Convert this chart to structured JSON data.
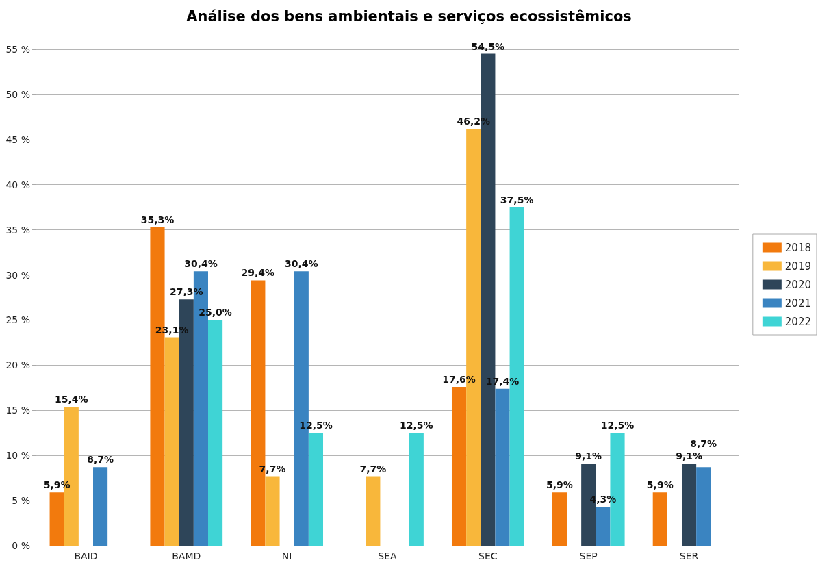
{
  "chart_data": {
    "type": "bar",
    "title": "Análise dos bens ambientais e serviços ecossistêmicos",
    "categories": [
      "BAID",
      "BAMD",
      "NI",
      "SEA",
      "SEC",
      "SEP",
      "SER"
    ],
    "series": [
      {
        "name": "2018",
        "color": "#f27a0d",
        "values": [
          5.9,
          35.3,
          29.4,
          null,
          17.6,
          5.9,
          5.9
        ],
        "value_labels": [
          "5,9%",
          "35,3%",
          "29,4%",
          null,
          "17,6%",
          "5,9%",
          "5,9%"
        ]
      },
      {
        "name": "2019",
        "color": "#f8b73b",
        "values": [
          15.4,
          23.1,
          7.7,
          7.7,
          46.2,
          null,
          null
        ],
        "value_labels": [
          "15,4%",
          "23,1%",
          "7,7%",
          "7,7%",
          "46,2%",
          null,
          null
        ]
      },
      {
        "name": "2020",
        "color": "#2e4559",
        "values": [
          null,
          27.3,
          null,
          null,
          54.5,
          9.1,
          9.1
        ],
        "value_labels": [
          null,
          "27,3%",
          null,
          null,
          "54,5%",
          "9,1%",
          "9,1%"
        ]
      },
      {
        "name": "2021",
        "color": "#3a84c1",
        "values": [
          8.7,
          30.4,
          30.4,
          null,
          17.4,
          4.3,
          8.7
        ],
        "value_labels": [
          "8,7%",
          "30,4%",
          "30,4%",
          null,
          "17,4%",
          "4,3%",
          "8,7%"
        ]
      },
      {
        "name": "2022",
        "color": "#3fd4d5",
        "values": [
          null,
          25.0,
          12.5,
          12.5,
          37.5,
          12.5,
          null
        ],
        "value_labels": [
          null,
          "25,0%",
          "12,5%",
          "12,5%",
          "37,5%",
          "12,5%",
          null
        ]
      }
    ],
    "ylim": [
      0,
      55
    ],
    "yticks": [
      {
        "value": 0,
        "label": "0 %"
      },
      {
        "value": 5,
        "label": "5 %"
      },
      {
        "value": 10,
        "label": "10 %"
      },
      {
        "value": 15,
        "label": "15 %"
      },
      {
        "value": 20,
        "label": "20 %"
      },
      {
        "value": 25,
        "label": "25 %"
      },
      {
        "value": 30,
        "label": "30 %"
      },
      {
        "value": 35,
        "label": "35 %"
      },
      {
        "value": 40,
        "label": "40 %"
      },
      {
        "value": 45,
        "label": "45 %"
      },
      {
        "value": 50,
        "label": "50 %"
      },
      {
        "value": 55,
        "label": "55 %"
      }
    ],
    "grid": "y",
    "legend": "right"
  }
}
